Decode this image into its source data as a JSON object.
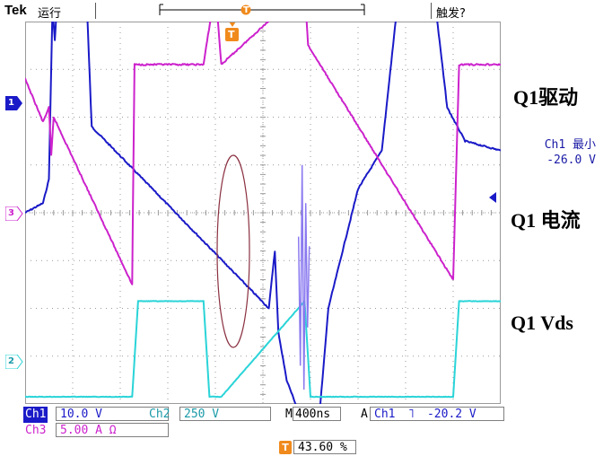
{
  "header": {
    "brand": "Tek",
    "run_state": "运行",
    "trigger_state": "触发?",
    "trigger_marker": "T"
  },
  "labels": {
    "q1_drive": "Q1驱动",
    "q1_current": "Q1 电流",
    "q1_vds": "Q1 Vds"
  },
  "channel_markers": {
    "ch1": "1",
    "ch2": "2",
    "ch3": "3"
  },
  "measurement": {
    "line1": "Ch1 最小",
    "line2": "-26.0 V"
  },
  "readouts": {
    "ch1_label": "Ch1",
    "ch1_scale": "10.0 V",
    "ch2_label": "Ch2",
    "ch2_scale": "250 V",
    "timebase_label": "M",
    "timebase": "400ns",
    "trigger_mode": "A",
    "trigger_source": "Ch1",
    "trigger_slope": "˥",
    "trigger_level": "-20.2 V",
    "ch3_label": "Ch3",
    "ch3_scale": "5.00 A Ω",
    "trigger_pos_marker": "T",
    "trigger_position": "43.60 %"
  },
  "colors": {
    "ch1": "#1a1ac8",
    "ch2": "#2ad4d8",
    "ch3": "#cc22cc",
    "trigger": "#f08a1c",
    "grid": "#9a9a9a",
    "annotation": "#8a3040"
  },
  "chart_data": {
    "type": "line",
    "x_unit": "ns",
    "x": [
      0,
      400,
      800,
      1200,
      1600,
      2000,
      2400,
      2800,
      3200,
      3600,
      4000
    ],
    "series": [
      {
        "name": "Ch1",
        "x": [
          0,
          150,
          200,
          230,
          250,
          270,
          480,
          520,
          560,
          2050,
          2100,
          2130,
          2200,
          2350,
          2450,
          2500,
          2550,
          2800,
          3000,
          3150,
          3250,
          3350,
          3550,
          3700,
          4000
        ],
        "y": [
          4.0,
          4.2,
          4.7,
          8.3,
          7.6,
          8.5,
          10.8,
          8.3,
          5.8,
          2.0,
          3.2,
          1.5,
          0.5,
          -0.5,
          -1.0,
          0.5,
          2.0,
          4.5,
          5.3,
          8.8,
          10.8,
          10.5,
          6.2,
          5.5,
          5.3
        ]
      },
      {
        "name": "Ch3",
        "x": [
          0,
          150,
          200,
          220,
          240,
          900,
          920,
          1000,
          1500,
          1600,
          1650,
          2350,
          2380,
          3600,
          3650,
          4000
        ],
        "y": [
          6.8,
          5.9,
          6.2,
          5.2,
          6.0,
          2.5,
          7.1,
          7.1,
          7.1,
          8.7,
          7.1,
          8.7,
          7.5,
          2.6,
          7.1,
          7.1
        ]
      },
      {
        "name": "Ch2",
        "x": [
          0,
          300,
          900,
          950,
          1000,
          1500,
          1550,
          1650,
          2350,
          2400,
          3600,
          3650,
          4000
        ],
        "y": [
          0.15,
          0.15,
          0.15,
          2.15,
          2.15,
          2.15,
          0.15,
          0.15,
          2.15,
          0.15,
          0.15,
          2.15,
          2.15
        ]
      }
    ]
  }
}
